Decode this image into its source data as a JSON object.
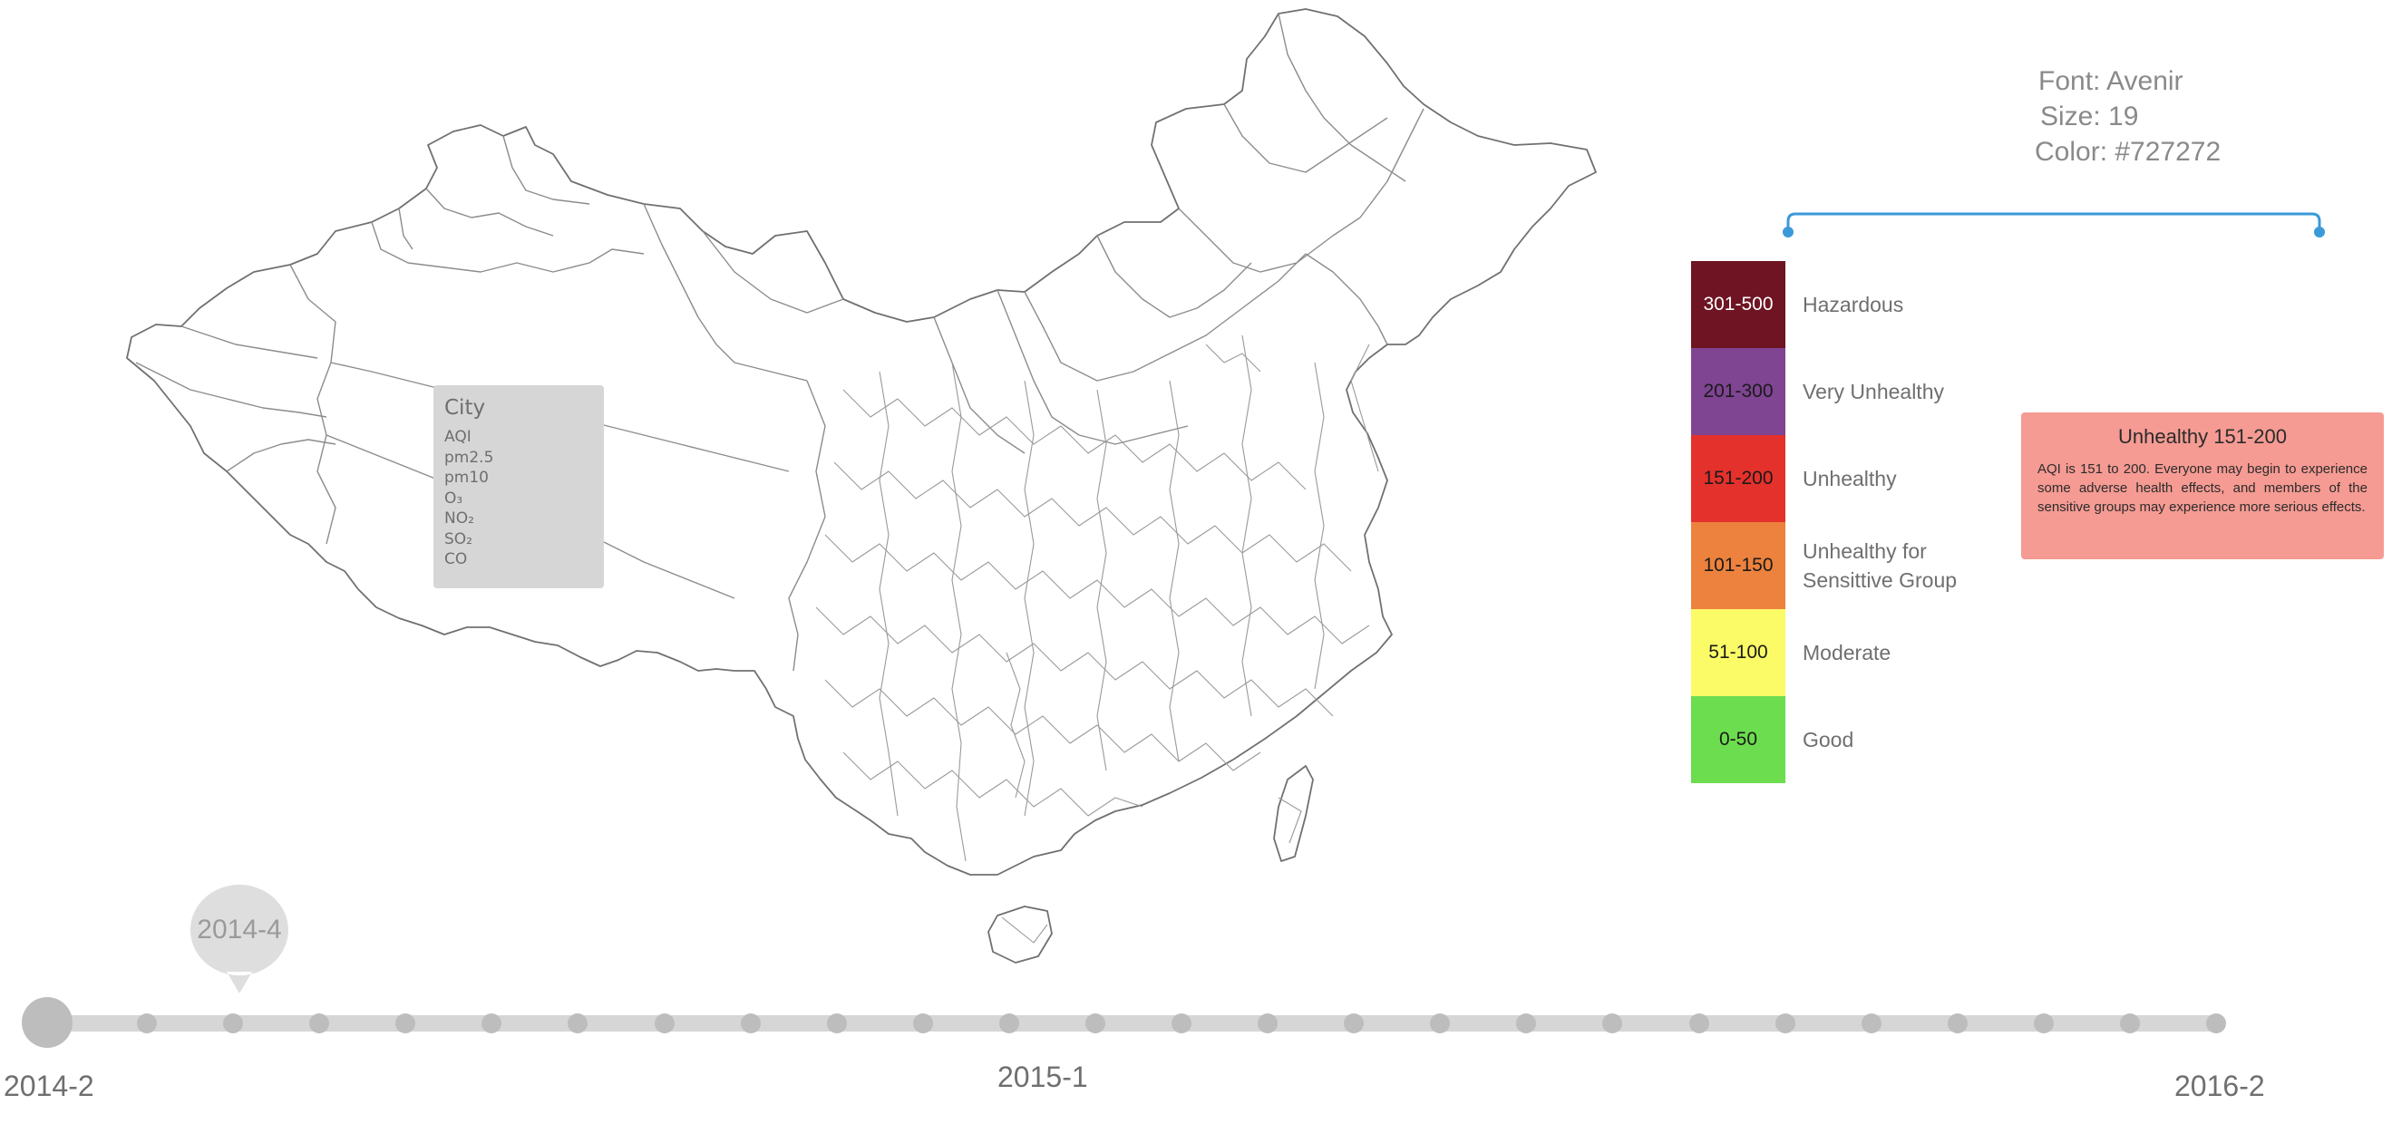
{
  "map": {
    "region": "China",
    "tooltip": {
      "title": "City",
      "rows": [
        "AQI",
        "pm2.5",
        "pm10",
        "O₃",
        "NO₂",
        "SO₂",
        "CO"
      ]
    }
  },
  "legend": {
    "items": [
      {
        "range": "301-500",
        "label": "Hazardous",
        "color": "#6e1423",
        "text_color": "#ffffff"
      },
      {
        "range": "201-300",
        "label": "Very Unhealthy",
        "color": "#7f4492",
        "text_color": "#1a1a1a"
      },
      {
        "range": "151-200",
        "label": "Unhealthy",
        "color": "#e4312c",
        "text_color": "#1a1a1a"
      },
      {
        "range": "101-150",
        "label": "Unhealthy for\nSensittive Group",
        "color": "#ec823d",
        "text_color": "#1a1a1a"
      },
      {
        "range": "51-100",
        "label": "Moderate",
        "color": "#fbfb68",
        "text_color": "#1a1a1a"
      },
      {
        "range": "0-50",
        "label": "Good",
        "color": "#6cdd4e",
        "text_color": "#1a1a1a"
      }
    ]
  },
  "annotation": {
    "font": "Font: Avenir",
    "size": "Size: 19",
    "color": "Color: #727272",
    "bracket_color": "#3a9ad9"
  },
  "info_card": {
    "title": "Unhealthy 151-200",
    "body": "AQI is 151 to 200. Everyone may begin to experience some adverse health effects, and members of the sensitive groups may experience more serious effects.",
    "color": "#f59b93"
  },
  "timeline": {
    "start_label": "2014-2",
    "middle_label": "2015-1",
    "end_label": "2016-2",
    "current": "2014-4",
    "tick_count": 25
  }
}
